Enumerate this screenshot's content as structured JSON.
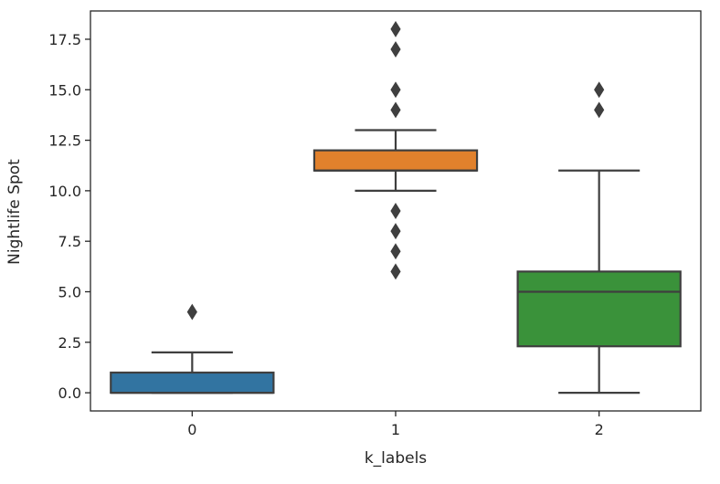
{
  "chart_data": {
    "type": "box",
    "xlabel": "k_labels",
    "ylabel": "Nightlife Spot",
    "categories": [
      "0",
      "1",
      "2"
    ],
    "ylim": [
      -0.9,
      18.9
    ],
    "yticks": [
      0.0,
      2.5,
      5.0,
      7.5,
      10.0,
      12.5,
      15.0,
      17.5
    ],
    "ytick_labels": [
      "0.0",
      "2.5",
      "5.0",
      "7.5",
      "10.0",
      "12.5",
      "15.0",
      "17.5"
    ],
    "grid": false,
    "boxes": [
      {
        "category": "0",
        "color": "#3274a1",
        "whisker_low": 0,
        "q1": 0,
        "median": 0,
        "q3": 1,
        "whisker_high": 2,
        "outliers": [
          4
        ]
      },
      {
        "category": "1",
        "color": "#e1812c",
        "whisker_low": 10,
        "q1": 11,
        "median": 11,
        "q3": 12,
        "whisker_high": 13,
        "outliers": [
          6,
          7,
          8,
          9,
          14,
          15,
          17,
          18
        ]
      },
      {
        "category": "2",
        "color": "#3a923a",
        "whisker_low": 0,
        "q1": 2.3,
        "median": 5,
        "q3": 6,
        "whisker_high": 11,
        "outliers": [
          14,
          15
        ]
      }
    ]
  }
}
